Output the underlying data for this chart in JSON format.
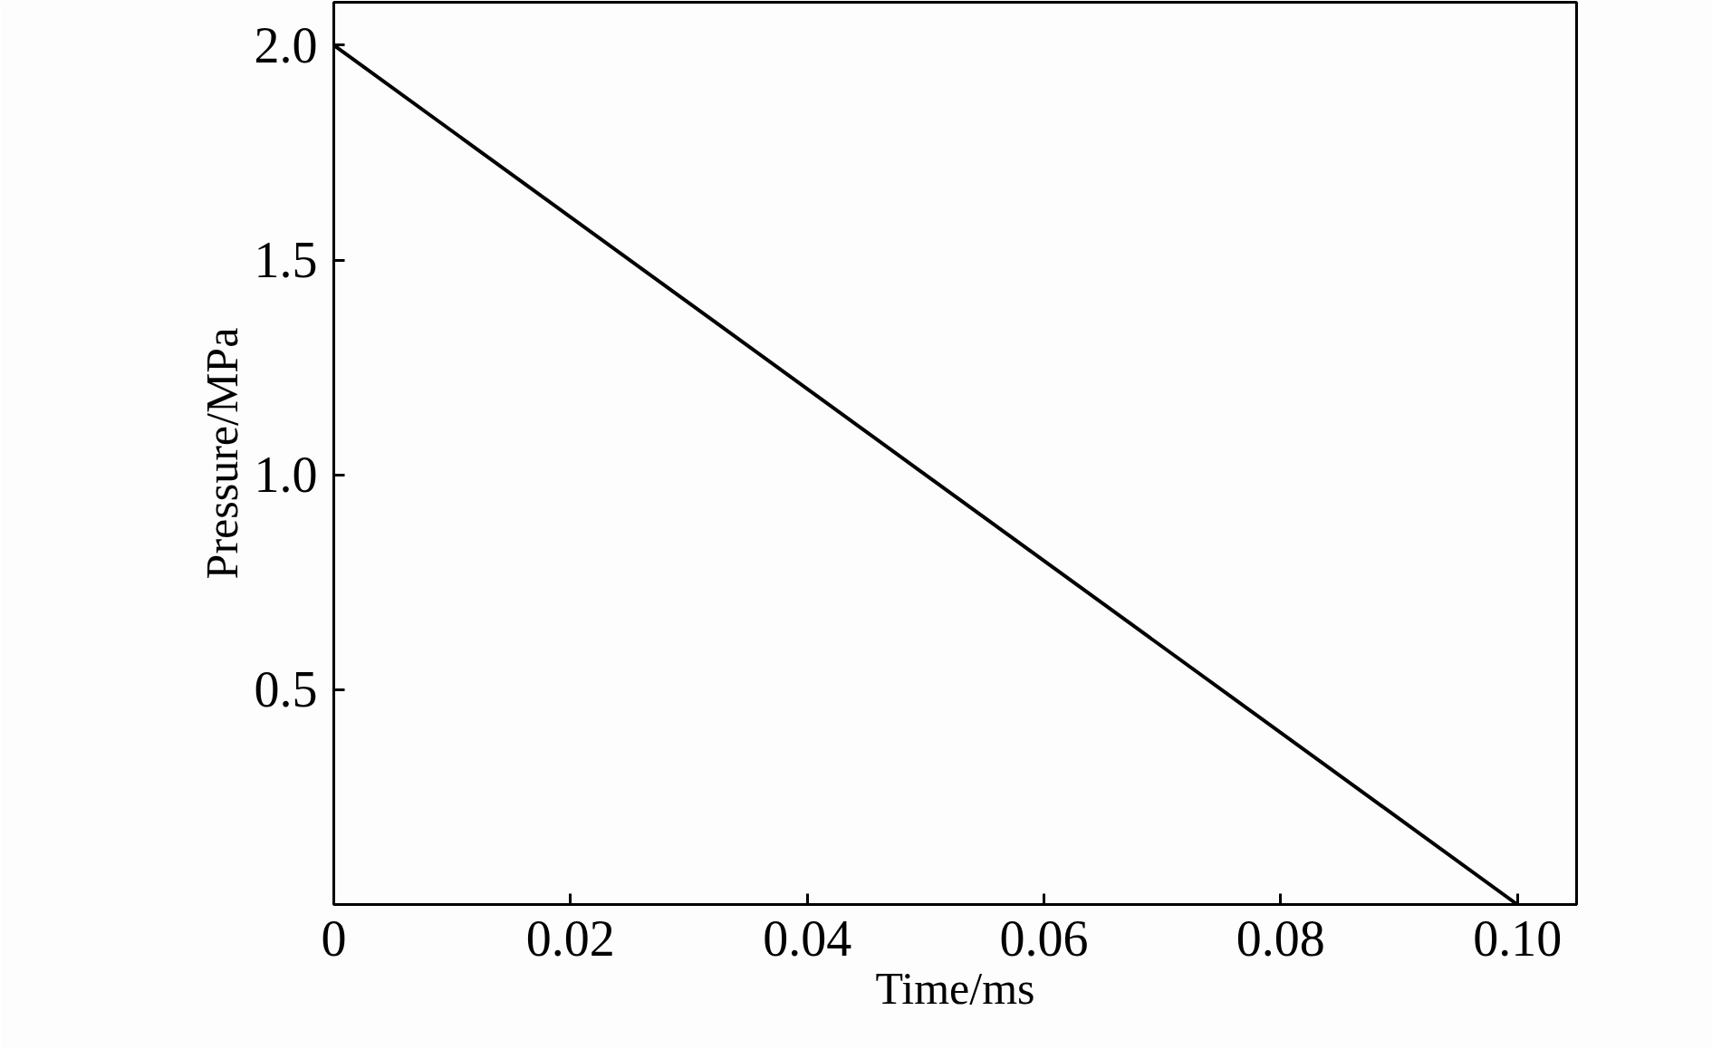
{
  "chart_data": {
    "type": "line",
    "xlabel": "Time/ms",
    "ylabel": "Pressure/MPa",
    "x": [
      0,
      0.1
    ],
    "series": [
      {
        "color": "#000000",
        "values": [
          2.0,
          0
        ]
      }
    ],
    "xlim": [
      0,
      0.105
    ],
    "ylim": [
      0,
      2.1
    ],
    "xticks": [
      0,
      {
        "value": 0.02,
        "label": "0.02"
      },
      {
        "value": 0.04,
        "label": "0.04"
      },
      {
        "value": 0.06,
        "label": "0.06"
      },
      {
        "value": 0.08,
        "label": "0.08"
      },
      {
        "value": 0.1,
        "label": "0.10"
      }
    ],
    "yticks": [
      0.5,
      {
        "value": 1.0,
        "label": "1.0"
      },
      1.5,
      {
        "value": 2.0,
        "label": "2.0"
      }
    ],
    "grid": false,
    "marker": "none",
    "line_style": "solid"
  }
}
